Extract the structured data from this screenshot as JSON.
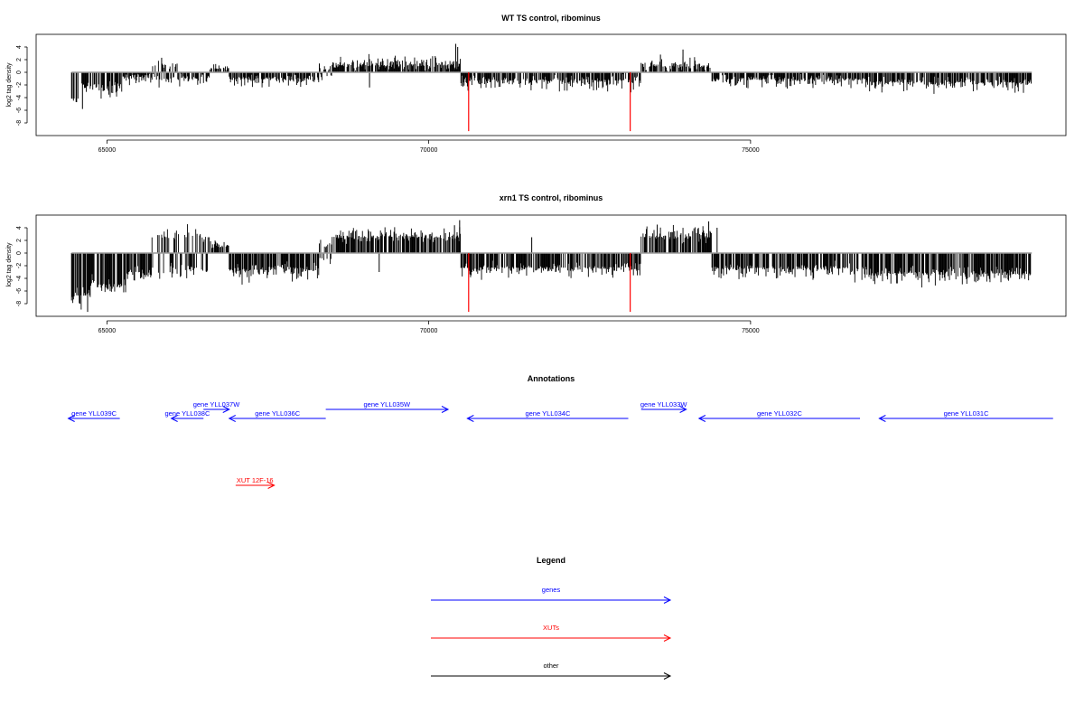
{
  "chart_data": [
    {
      "type": "bar",
      "title": "WT TS control, ribominus",
      "ylabel": "log2 tag density",
      "xlabel": "",
      "xlim": [
        63900,
        79900
      ],
      "ylim": [
        -10,
        6
      ],
      "x_ticks": [
        65000,
        70000,
        75000
      ],
      "y_ticks": [
        4,
        2,
        0,
        -2,
        -4,
        -6,
        -8
      ],
      "data_start": 64450,
      "data_end": 79370,
      "baseline": 0,
      "segments": [
        {
          "from": 64450,
          "to": 64560,
          "strand": "minus",
          "base": 4.3,
          "spread": 1.2
        },
        {
          "from": 64560,
          "to": 64800,
          "strand": "minus",
          "base": 2.4,
          "spread": 1.4
        },
        {
          "from": 64800,
          "to": 65250,
          "strand": "minus",
          "base": 2.2,
          "spread": 1.8
        },
        {
          "from": 65250,
          "to": 65700,
          "strand": "minus",
          "base": 0.8,
          "spread": 1.0
        },
        {
          "from": 65700,
          "to": 66100,
          "strand": "mixed",
          "base": 0.9,
          "spread": 1.3
        },
        {
          "from": 66100,
          "to": 66600,
          "strand": "minus",
          "base": 0.9,
          "spread": 1.2
        },
        {
          "from": 66600,
          "to": 66900,
          "strand": "plus",
          "base": 0.6,
          "spread": 0.8
        },
        {
          "from": 66900,
          "to": 68300,
          "strand": "minus",
          "base": 1.0,
          "spread": 1.2
        },
        {
          "from": 68300,
          "to": 68500,
          "strand": "mixed",
          "base": 0.5,
          "spread": 0.6
        },
        {
          "from": 68500,
          "to": 70500,
          "strand": "plus",
          "base": 1.1,
          "spread": 1.4
        },
        {
          "from": 70500,
          "to": 73300,
          "strand": "minus",
          "base": 1.3,
          "spread": 1.6
        },
        {
          "from": 73300,
          "to": 74400,
          "strand": "plus",
          "base": 0.9,
          "spread": 1.4
        },
        {
          "from": 74400,
          "to": 76800,
          "strand": "minus",
          "base": 1.1,
          "spread": 1.4
        },
        {
          "from": 76800,
          "to": 79370,
          "strand": "minus",
          "base": 1.6,
          "spread": 1.5
        }
      ],
      "spikes": [
        {
          "x": 65850,
          "y": 2.3
        },
        {
          "x": 68300,
          "y": 1.4
        },
        {
          "x": 70420,
          "y": 4.5
        },
        {
          "x": 70450,
          "y": 4.0
        },
        {
          "x": 73600,
          "y": 2.8
        },
        {
          "x": 73950,
          "y": 3.6
        },
        {
          "x": 69080,
          "y": -2.4
        },
        {
          "x": 64620,
          "y": -5.8
        }
      ],
      "highlights": [
        {
          "x": 70620,
          "y": -9.3,
          "color": "#ff0000"
        },
        {
          "x": 73130,
          "y": -9.3,
          "color": "#ff0000"
        }
      ]
    },
    {
      "type": "bar",
      "title": "xrn1 TS control, ribominus",
      "ylabel": "log2 tag density",
      "xlabel": "",
      "xlim": [
        63900,
        79900
      ],
      "ylim": [
        -10,
        6
      ],
      "x_ticks": [
        65000,
        70000,
        75000
      ],
      "y_ticks": [
        4,
        2,
        0,
        -2,
        -4,
        -6,
        -8
      ],
      "data_start": 64450,
      "data_end": 79370,
      "baseline": 0,
      "segments": [
        {
          "from": 64450,
          "to": 64750,
          "strand": "minus",
          "base": 6.5,
          "spread": 2.0
        },
        {
          "from": 64750,
          "to": 64850,
          "strand": "minus",
          "base": 4.0,
          "spread": 2.5
        },
        {
          "from": 64850,
          "to": 65300,
          "strand": "minus",
          "base": 5.0,
          "spread": 2.0
        },
        {
          "from": 65300,
          "to": 65700,
          "strand": "minus",
          "base": 3.0,
          "spread": 2.0
        },
        {
          "from": 65700,
          "to": 66600,
          "strand": "mixed",
          "base": 2.5,
          "spread": 2.0
        },
        {
          "from": 66600,
          "to": 66900,
          "strand": "plus",
          "base": 1.0,
          "spread": 1.0
        },
        {
          "from": 66900,
          "to": 68300,
          "strand": "minus",
          "base": 2.6,
          "spread": 2.0
        },
        {
          "from": 68300,
          "to": 68500,
          "strand": "mixed",
          "base": 1.0,
          "spread": 1.0
        },
        {
          "from": 68500,
          "to": 70500,
          "strand": "plus",
          "base": 2.5,
          "spread": 1.6
        },
        {
          "from": 70500,
          "to": 73300,
          "strand": "minus",
          "base": 2.3,
          "spread": 1.6
        },
        {
          "from": 73300,
          "to": 74400,
          "strand": "plus",
          "base": 2.5,
          "spread": 1.6
        },
        {
          "from": 74400,
          "to": 76800,
          "strand": "minus",
          "base": 2.4,
          "spread": 1.8
        },
        {
          "from": 76800,
          "to": 79370,
          "strand": "minus",
          "base": 3.2,
          "spread": 1.8
        }
      ],
      "spikes": [
        {
          "x": 65900,
          "y": 2.6
        },
        {
          "x": 70480,
          "y": 5.2
        },
        {
          "x": 70400,
          "y": 4.4
        },
        {
          "x": 74350,
          "y": 5.0
        },
        {
          "x": 74480,
          "y": 4.0
        },
        {
          "x": 71600,
          "y": 2.5
        },
        {
          "x": 64700,
          "y": -9.3
        },
        {
          "x": 64580,
          "y": -8.0
        },
        {
          "x": 69230,
          "y": -3.0
        },
        {
          "x": 73550,
          "y": 4.5
        }
      ],
      "highlights": [
        {
          "x": 70620,
          "y": -9.3,
          "color": "#ff0000"
        },
        {
          "x": 73130,
          "y": -9.3,
          "color": "#ff0000"
        }
      ]
    }
  ],
  "annotations": {
    "title": "Annotations",
    "colors": {
      "gene": "#0000ff",
      "xut": "#ff0000",
      "other": "#000000"
    },
    "features": [
      {
        "label": "gene YLL039C",
        "start": 64400,
        "end": 65200,
        "strand": "minus",
        "row": 0,
        "kind": "gene"
      },
      {
        "label": "gene YLL038C",
        "start": 66000,
        "end": 66500,
        "strand": "minus",
        "row": 0,
        "kind": "gene"
      },
      {
        "label": "gene YLL037W",
        "start": 66500,
        "end": 66900,
        "strand": "plus",
        "row": 1,
        "kind": "gene"
      },
      {
        "label": "gene YLL036C",
        "start": 66900,
        "end": 68400,
        "strand": "minus",
        "row": 0,
        "kind": "gene"
      },
      {
        "label": "gene YLL035W",
        "start": 68400,
        "end": 70300,
        "strand": "plus",
        "row": 1,
        "kind": "gene"
      },
      {
        "label": "gene YLL034C",
        "start": 70600,
        "end": 73100,
        "strand": "minus",
        "row": 0,
        "kind": "gene"
      },
      {
        "label": "gene YLL033W",
        "start": 73300,
        "end": 74000,
        "strand": "plus",
        "row": 1,
        "kind": "gene"
      },
      {
        "label": "gene YLL032C",
        "start": 74200,
        "end": 76700,
        "strand": "minus",
        "row": 0,
        "kind": "gene"
      },
      {
        "label": "gene YLL031C",
        "start": 77000,
        "end": 79700,
        "strand": "minus",
        "row": 0,
        "kind": "gene"
      },
      {
        "label": "XUT 12F-16",
        "start": 67000,
        "end": 67600,
        "strand": "plus",
        "row": 2,
        "kind": "xut"
      }
    ]
  },
  "legend": {
    "title": "Legend",
    "entries": [
      {
        "label": "genes",
        "color": "#0000ff"
      },
      {
        "label": "XUTs",
        "color": "#ff0000"
      },
      {
        "label": "other",
        "color": "#000000"
      }
    ]
  }
}
